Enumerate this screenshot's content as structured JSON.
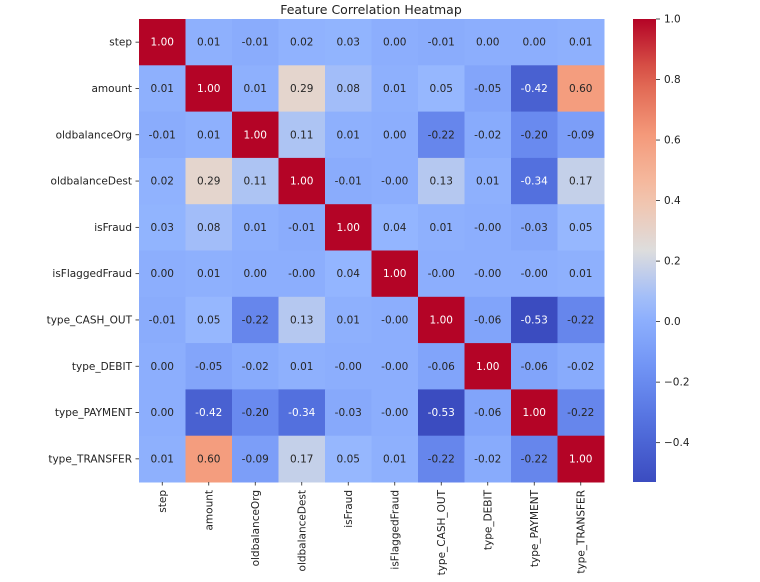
{
  "chart_data": {
    "type": "heatmap",
    "title": "Feature Correlation Heatmap",
    "colormap": "coolwarm",
    "vmin": -0.53,
    "vmax": 1.0,
    "colorbar_ticks": [
      "1.0",
      "0.8",
      "0.6",
      "0.4",
      "0.2",
      "0.0",
      "−0.2",
      "−0.4"
    ],
    "colorbar_tick_values": [
      1.0,
      0.8,
      0.6,
      0.4,
      0.2,
      0.0,
      -0.2,
      -0.4
    ],
    "labels": [
      "step",
      "amount",
      "oldbalanceOrg",
      "oldbalanceDest",
      "isFraud",
      "isFlaggedFraud",
      "type_CASH_OUT",
      "type_DEBIT",
      "type_PAYMENT",
      "type_TRANSFER"
    ],
    "matrix_text": [
      [
        "1.00",
        "0.01",
        "-0.01",
        "0.02",
        "0.03",
        "0.00",
        "-0.01",
        "0.00",
        "0.00",
        "0.01"
      ],
      [
        "0.01",
        "1.00",
        "0.01",
        "0.29",
        "0.08",
        "0.01",
        "0.05",
        "-0.05",
        "-0.42",
        "0.60"
      ],
      [
        "-0.01",
        "0.01",
        "1.00",
        "0.11",
        "0.01",
        "0.00",
        "-0.22",
        "-0.02",
        "-0.20",
        "-0.09"
      ],
      [
        "0.02",
        "0.29",
        "0.11",
        "1.00",
        "-0.01",
        "-0.00",
        "0.13",
        "0.01",
        "-0.34",
        "0.17"
      ],
      [
        "0.03",
        "0.08",
        "0.01",
        "-0.01",
        "1.00",
        "0.04",
        "0.01",
        "-0.00",
        "-0.03",
        "0.05"
      ],
      [
        "0.00",
        "0.01",
        "0.00",
        "-0.00",
        "0.04",
        "1.00",
        "-0.00",
        "-0.00",
        "-0.00",
        "0.01"
      ],
      [
        "-0.01",
        "0.05",
        "-0.22",
        "0.13",
        "0.01",
        "-0.00",
        "1.00",
        "-0.06",
        "-0.53",
        "-0.22"
      ],
      [
        "0.00",
        "-0.05",
        "-0.02",
        "0.01",
        "-0.00",
        "-0.00",
        "-0.06",
        "1.00",
        "-0.06",
        "-0.02"
      ],
      [
        "0.00",
        "-0.42",
        "-0.20",
        "-0.34",
        "-0.03",
        "-0.00",
        "-0.53",
        "-0.06",
        "1.00",
        "-0.22"
      ],
      [
        "0.01",
        "0.60",
        "-0.09",
        "0.17",
        "0.05",
        "0.01",
        "-0.22",
        "-0.02",
        "-0.22",
        "1.00"
      ]
    ]
  }
}
